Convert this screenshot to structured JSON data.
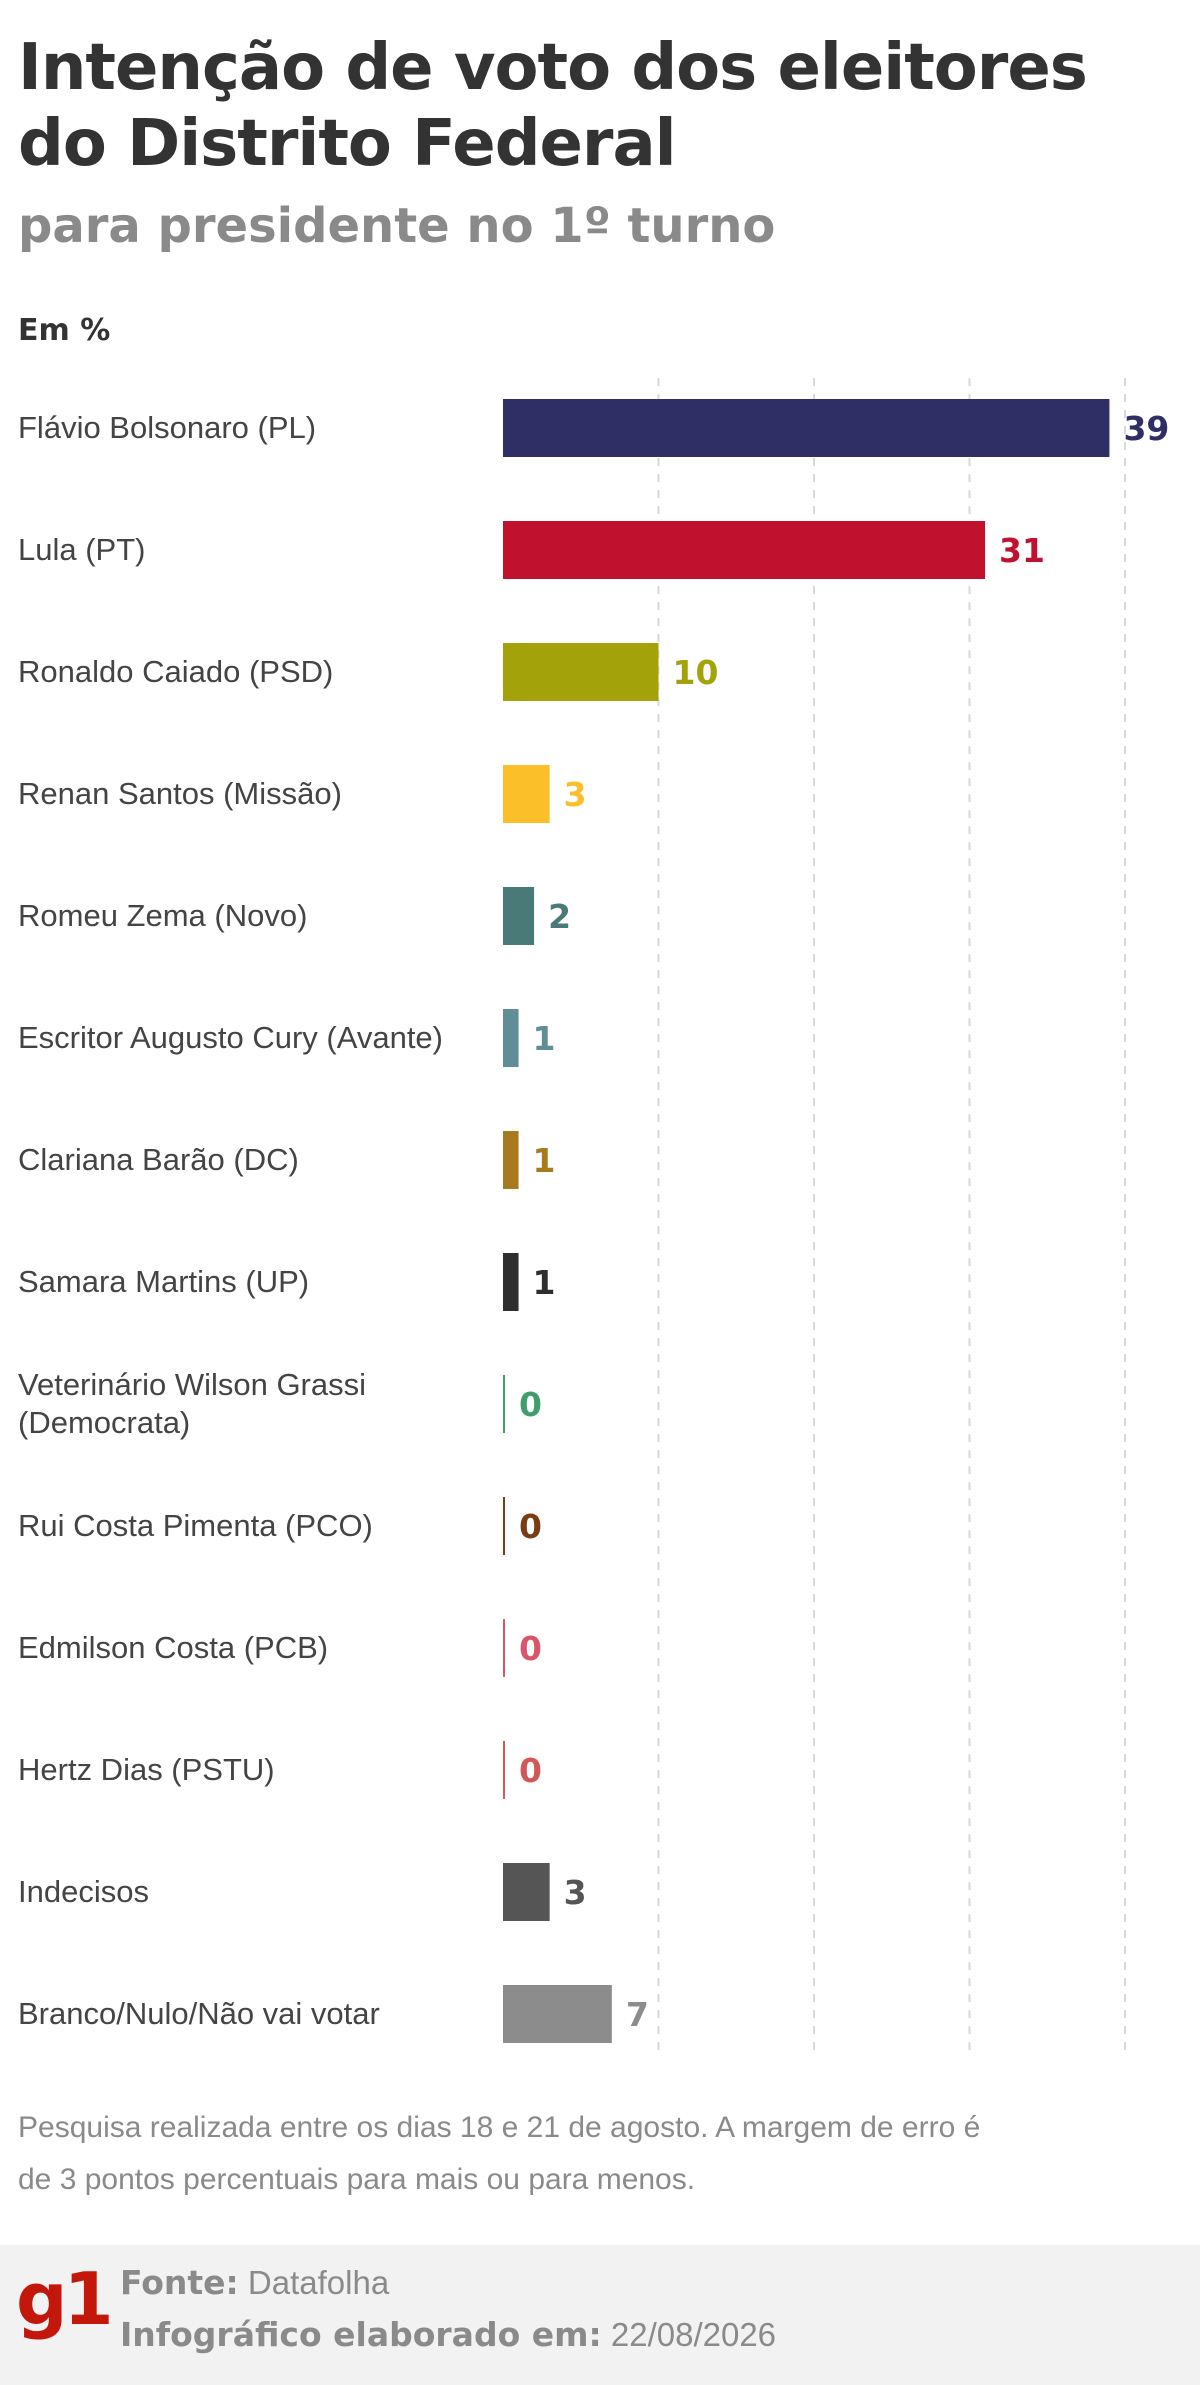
{
  "title": "Intenção de voto dos eleitores do Distrito Federal",
  "subtitle": "para presidente no 1º turno",
  "unit_label": "Em %",
  "chart_data": {
    "type": "bar",
    "orientation": "horizontal",
    "categories": [
      "Flávio Bolsonaro (PL)",
      "Lula (PT)",
      "Ronaldo Caiado (PSD)",
      "Renan Santos (Missão)",
      "Romeu Zema (Novo)",
      "Escritor Augusto Cury (Avante)",
      "Clariana Barão (DC)",
      "Samara Martins (UP)",
      "Veterinário Wilson Grassi (Democrata)",
      "Rui Costa Pimenta (PCO)",
      "Edmilson Costa (PCB)",
      "Hertz Dias (PSTU)",
      "Indecisos",
      "Branco/Nulo/Não vai votar"
    ],
    "values": [
      39,
      31,
      10,
      3,
      2,
      1,
      1,
      1,
      0,
      0,
      0,
      0,
      3,
      7
    ],
    "colors": [
      "#2f2f66",
      "#c0112e",
      "#a3a20a",
      "#fbbf2a",
      "#4a7a78",
      "#5f8e96",
      "#a8791f",
      "#2e2e2e",
      "#3f9e6c",
      "#7a3c12",
      "#d9556a",
      "#d05858",
      "#555555",
      "#8c8c8c"
    ],
    "xlim": [
      0,
      40
    ],
    "grid": true,
    "legend": "none"
  },
  "footnote": "Pesquisa realizada entre os dias 18 e 21 de agosto. A margem de erro é de 3 pontos percentuais para mais ou para menos.",
  "footer": {
    "logo": "g1",
    "source_label": "Fonte:",
    "source_value": "Datafolha",
    "date_label": "Infográfico elaborado em:",
    "date_value": "22/08/2026"
  }
}
